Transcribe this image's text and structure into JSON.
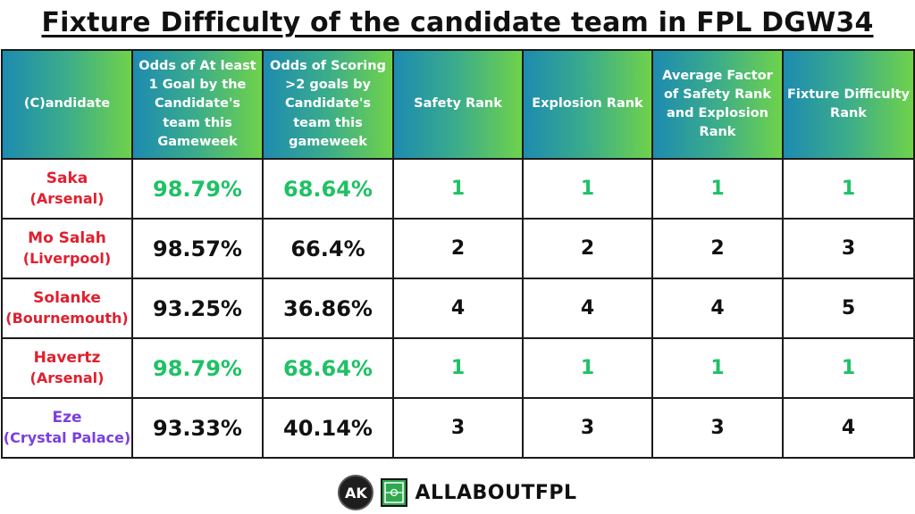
{
  "title": "Fixture Difficulty of the candidate team in FPL DGW34",
  "colors": {
    "candidate_red": "#e0202e",
    "candidate_purple": "#7b3fe0",
    "highlight_green": "#1fc165",
    "header_gradient_start": "#1d8bb0",
    "header_gradient_end": "#6fd24a"
  },
  "columns": [
    "(C)andidate",
    "Odds of At least 1 Goal by the Candidate's team this Gameweek",
    "Odds of Scoring >2 goals by Candidate's team this gameweek",
    "Safety Rank",
    "Explosion Rank",
    "Average Factor of Safety Rank and Explosion Rank",
    "Fixture Difficulty Rank"
  ],
  "rows": [
    {
      "name": "Saka",
      "team": "(Arsenal)",
      "color": "red",
      "odds_one_goal": "98.79%",
      "odds_two_goals": "68.64%",
      "safety_rank": "1",
      "explosion_rank": "1",
      "average_factor": "1",
      "fixture_difficulty_rank": "1",
      "highlight": true
    },
    {
      "name": "Mo Salah",
      "team": "(Liverpool)",
      "color": "red",
      "odds_one_goal": "98.57%",
      "odds_two_goals": "66.4%",
      "safety_rank": "2",
      "explosion_rank": "2",
      "average_factor": "2",
      "fixture_difficulty_rank": "3",
      "highlight": false
    },
    {
      "name": "Solanke",
      "team": "(Bournemouth)",
      "color": "red",
      "odds_one_goal": "93.25%",
      "odds_two_goals": "36.86%",
      "safety_rank": "4",
      "explosion_rank": "4",
      "average_factor": "4",
      "fixture_difficulty_rank": "5",
      "highlight": false
    },
    {
      "name": "Havertz",
      "team": "(Arsenal)",
      "color": "red",
      "odds_one_goal": "98.79%",
      "odds_two_goals": "68.64%",
      "safety_rank": "1",
      "explosion_rank": "1",
      "average_factor": "1",
      "fixture_difficulty_rank": "1",
      "highlight": true
    },
    {
      "name": "Eze",
      "team": "(Crystal Palace)",
      "color": "purple",
      "odds_one_goal": "93.33%",
      "odds_two_goals": "40.14%",
      "safety_rank": "3",
      "explosion_rank": "3",
      "average_factor": "3",
      "fixture_difficulty_rank": "4",
      "highlight": false
    }
  ],
  "footer": {
    "logo_text": "AK",
    "brand": "ALLABOUTFPL"
  }
}
